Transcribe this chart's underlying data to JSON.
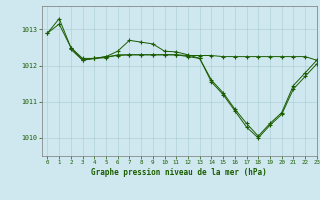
{
  "background_color": "#cfe8f0",
  "grid_color": "#b0d0d8",
  "line_color": "#1a5c00",
  "ylim": [
    1009.5,
    1013.65
  ],
  "xlim": [
    -0.5,
    23
  ],
  "yticks": [
    1010,
    1011,
    1012,
    1013
  ],
  "xticks": [
    0,
    1,
    2,
    3,
    4,
    5,
    6,
    7,
    8,
    9,
    10,
    11,
    12,
    13,
    14,
    15,
    16,
    17,
    18,
    19,
    20,
    21,
    22,
    23
  ],
  "xlabel": "Graphe pression niveau de la mer (hPa)",
  "series": [
    {
      "x": [
        0,
        1,
        2,
        3,
        4,
        5,
        6,
        7,
        8,
        9,
        10,
        11,
        12,
        13,
        14,
        15,
        16,
        17,
        18,
        19,
        20,
        21,
        22,
        23
      ],
      "y": [
        1012.9,
        1013.15,
        1012.5,
        1012.2,
        1012.2,
        1012.25,
        1012.28,
        1012.3,
        1012.3,
        1012.3,
        1012.3,
        1012.3,
        1012.28,
        1012.28,
        1012.28,
        1012.25,
        1012.25,
        1012.25,
        1012.25,
        1012.25,
        1012.25,
        1012.25,
        1012.25,
        1012.15
      ]
    },
    {
      "x": [
        0,
        1,
        2,
        3,
        4,
        5,
        6,
        7,
        8,
        9,
        10,
        11,
        12,
        13,
        14,
        15,
        16,
        17,
        18,
        19,
        20,
        21,
        22,
        23
      ],
      "y": [
        1012.9,
        1013.3,
        1012.5,
        1012.15,
        1012.2,
        1012.25,
        1012.4,
        1012.7,
        1012.65,
        1012.6,
        1012.4,
        1012.38,
        1012.3,
        1012.2,
        1011.6,
        1011.25,
        1010.8,
        1010.4,
        1010.05,
        1010.4,
        1010.7,
        1011.45,
        1011.8,
        1012.15
      ]
    },
    {
      "x": [
        2,
        3,
        4,
        5,
        6,
        7,
        8,
        9,
        10,
        11,
        12,
        13,
        14,
        15,
        16,
        17,
        18,
        19,
        20,
        21,
        22,
        23
      ],
      "y": [
        1012.45,
        1012.15,
        1012.2,
        1012.22,
        1012.3,
        1012.3,
        1012.3,
        1012.3,
        1012.3,
        1012.3,
        1012.25,
        1012.2,
        1011.55,
        1011.2,
        1010.75,
        1010.3,
        1010.0,
        1010.35,
        1010.65,
        1011.35,
        1011.7,
        1012.05
      ]
    }
  ]
}
